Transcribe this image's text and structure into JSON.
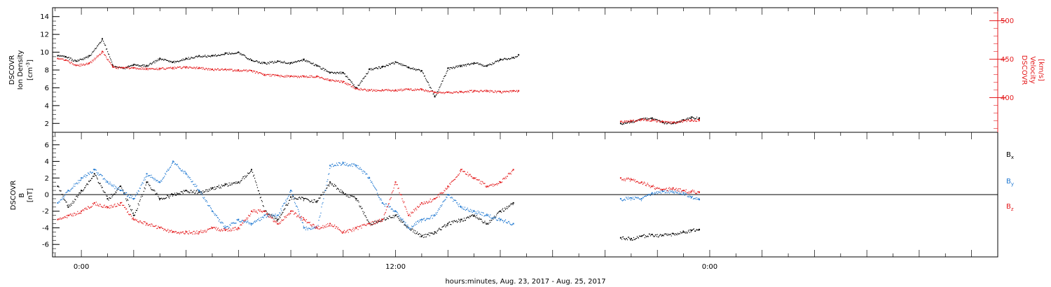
{
  "colors": {
    "black": "#000000",
    "red": "#e41a1c",
    "blue": "#1f78d1"
  },
  "shared_x": {
    "label": "hours:minutes, Aug. 23, 2017 - Aug. 25, 2017",
    "range_hours": [
      -1.1,
      35.0
    ],
    "tick_labels": [
      {
        "hour": 0,
        "label": "0:00"
      },
      {
        "hour": 12,
        "label": "12:00"
      },
      {
        "hour": 24,
        "label": "0:00"
      }
    ]
  },
  "chart_data": [
    {
      "type": "scatter",
      "name": "top-panel",
      "left_axis": {
        "label_lines": [
          "DSCOVR",
          "Ion Density"
        ],
        "unit": "[cm",
        "unit_sup": "-3",
        "unit_close": "]",
        "ylim": [
          1.0,
          15.0
        ],
        "ticks": [
          2,
          4,
          6,
          8,
          10,
          12,
          14
        ]
      },
      "right_axis": {
        "label_lines": [
          "DSCOVR",
          "Velocity"
        ],
        "unit": "[km/s]",
        "ylim": [
          355,
          517
        ],
        "ticks": [
          400,
          450,
          500
        ]
      },
      "series": [
        {
          "key": "density",
          "axis": "left",
          "color": "black",
          "x": [
            -0.9,
            -0.6,
            -0.2,
            0.3,
            0.8,
            1.2,
            1.6,
            2.0,
            2.5,
            3.0,
            3.5,
            4.0,
            4.5,
            5.0,
            5.5,
            6.0,
            6.5,
            7.0,
            7.5,
            8.0,
            8.5,
            9.0,
            9.5,
            10.0,
            10.5,
            11.0,
            11.5,
            12.0,
            12.5,
            13.0,
            13.5,
            14.0,
            14.5,
            15.0,
            15.5,
            16.0,
            16.5,
            16.7
          ],
          "y": [
            9.6,
            9.5,
            9.0,
            9.6,
            11.5,
            8.5,
            8.2,
            8.6,
            8.5,
            9.3,
            8.9,
            9.3,
            9.6,
            9.6,
            9.9,
            10.0,
            9.1,
            8.8,
            9.0,
            8.8,
            9.2,
            8.5,
            7.7,
            7.7,
            6.0,
            8.1,
            8.4,
            8.9,
            8.3,
            7.9,
            5.0,
            8.2,
            8.5,
            8.8,
            8.5,
            9.2,
            9.4,
            9.7
          ]
        },
        {
          "key": "velocity",
          "axis": "right",
          "color": "red",
          "x": [
            -0.9,
            -0.6,
            -0.2,
            0.3,
            0.8,
            1.2,
            1.6,
            2.0,
            2.5,
            3.0,
            3.5,
            4.0,
            4.5,
            5.0,
            5.5,
            6.0,
            6.5,
            7.0,
            7.5,
            8.0,
            8.5,
            9.0,
            9.5,
            10.0,
            10.5,
            11.0,
            11.5,
            12.0,
            12.5,
            13.0,
            13.5,
            14.0,
            14.5,
            15.0,
            15.5,
            16.0,
            16.5,
            16.7
          ],
          "y": [
            451,
            449,
            442,
            445,
            460,
            440,
            439,
            439,
            438,
            438,
            439,
            440,
            439,
            437,
            437,
            436,
            435,
            430,
            429,
            428,
            428,
            428,
            423,
            421,
            412,
            410,
            410,
            410,
            411,
            411,
            407,
            407,
            408,
            409,
            409,
            408,
            409,
            409
          ]
        },
        {
          "key": "density-late",
          "axis": "left",
          "color": "black",
          "x": [
            20.6,
            21.0,
            21.4,
            21.8,
            22.2,
            22.6,
            23.0,
            23.3,
            23.6
          ],
          "y": [
            2.0,
            2.2,
            2.5,
            2.6,
            2.1,
            2.0,
            2.4,
            2.7,
            2.6
          ]
        },
        {
          "key": "velocity-late",
          "axis": "right",
          "color": "red",
          "x": [
            20.6,
            21.0,
            21.4,
            21.8,
            22.2,
            22.6,
            23.0,
            23.3,
            23.6
          ],
          "y": [
            369,
            370,
            372,
            371,
            369,
            368,
            370,
            371,
            371
          ]
        }
      ]
    },
    {
      "type": "scatter",
      "name": "bottom-panel",
      "left_axis": {
        "label_lines": [
          "DSCOVR",
          "B"
        ],
        "unit": "[nT]",
        "ylim": [
          -7.5,
          7.5
        ],
        "ticks": [
          -6,
          -4,
          -2,
          0,
          2,
          4,
          6
        ],
        "zero_line": 0
      },
      "legend_position": "right",
      "series": [
        {
          "key": "bx",
          "name": "B",
          "sub": "x",
          "color": "black",
          "x": [
            -0.9,
            -0.5,
            0.0,
            0.5,
            1.0,
            1.5,
            2.0,
            2.5,
            3.0,
            3.5,
            4.0,
            4.5,
            5.0,
            5.5,
            6.0,
            6.5,
            7.0,
            7.5,
            8.0,
            8.5,
            9.0,
            9.5,
            10.0,
            10.5,
            11.0,
            11.5,
            12.0,
            12.5,
            13.0,
            13.5,
            14.0,
            14.5,
            15.0,
            15.5,
            16.0,
            16.5
          ],
          "y": [
            1.0,
            -1.5,
            0.5,
            2.5,
            -0.5,
            1.0,
            -2.5,
            1.5,
            -0.5,
            0.0,
            0.5,
            0.3,
            0.8,
            1.2,
            1.5,
            3.0,
            -2.0,
            -3.0,
            -0.3,
            -0.5,
            -0.8,
            1.5,
            0.2,
            -0.5,
            -3.5,
            -3.0,
            -2.5,
            -4.0,
            -5.0,
            -4.5,
            -3.5,
            -3.0,
            -2.5,
            -3.5,
            -2.0,
            -1.0
          ]
        },
        {
          "key": "by",
          "name": "B",
          "sub": "y",
          "color": "blue",
          "x": [
            -0.9,
            -0.5,
            0.0,
            0.5,
            1.0,
            1.5,
            2.0,
            2.5,
            3.0,
            3.5,
            4.0,
            4.5,
            5.0,
            5.5,
            6.0,
            6.5,
            7.0,
            7.5,
            8.0,
            8.5,
            9.0,
            9.5,
            10.0,
            10.5,
            11.0,
            11.5,
            12.0,
            12.5,
            13.0,
            13.5,
            14.0,
            14.5,
            15.0,
            15.5,
            16.0,
            16.5
          ],
          "y": [
            -1.0,
            0.5,
            2.0,
            3.0,
            1.5,
            0.5,
            -0.5,
            2.5,
            1.5,
            4.0,
            2.5,
            0.5,
            -2.0,
            -4.0,
            -3.0,
            -3.5,
            -2.5,
            -2.5,
            0.5,
            -4.0,
            -4.0,
            3.5,
            3.8,
            3.5,
            2.0,
            -1.0,
            -2.0,
            -4.0,
            -3.0,
            -2.5,
            0.0,
            -1.5,
            -2.0,
            -2.5,
            -3.0,
            -3.5
          ]
        },
        {
          "key": "bz",
          "name": "B",
          "sub": "z",
          "color": "red",
          "x": [
            -0.9,
            -0.5,
            0.0,
            0.5,
            1.0,
            1.5,
            2.0,
            2.5,
            3.0,
            3.5,
            4.0,
            4.5,
            5.0,
            5.5,
            6.0,
            6.5,
            7.0,
            7.5,
            8.0,
            8.5,
            9.0,
            9.5,
            10.0,
            10.5,
            11.0,
            11.5,
            12.0,
            12.5,
            13.0,
            13.5,
            14.0,
            14.5,
            15.0,
            15.5,
            16.0,
            16.5
          ],
          "y": [
            -3.0,
            -2.5,
            -2.0,
            -1.0,
            -1.5,
            -1.0,
            -3.0,
            -3.5,
            -4.0,
            -4.5,
            -4.5,
            -4.5,
            -4.0,
            -4.3,
            -4.0,
            -2.0,
            -2.0,
            -3.5,
            -2.0,
            -3.0,
            -4.0,
            -3.5,
            -4.5,
            -4.0,
            -3.5,
            -3.0,
            1.5,
            -2.5,
            -1.0,
            -0.5,
            1.0,
            3.0,
            2.0,
            1.0,
            1.5,
            3.0
          ]
        },
        {
          "key": "bx-late",
          "color": "black",
          "x": [
            20.6,
            21.0,
            21.4,
            21.8,
            22.2,
            22.6,
            23.0,
            23.3,
            23.6
          ],
          "y": [
            -5.2,
            -5.3,
            -5.0,
            -4.8,
            -4.9,
            -4.7,
            -4.5,
            -4.3,
            -4.2
          ]
        },
        {
          "key": "by-late",
          "color": "blue",
          "x": [
            20.6,
            21.0,
            21.4,
            21.8,
            22.2,
            22.6,
            23.0,
            23.3,
            23.6
          ],
          "y": [
            -0.5,
            -0.4,
            -0.5,
            0.2,
            0.4,
            0.3,
            0.2,
            -0.3,
            -0.6
          ]
        },
        {
          "key": "bz-late",
          "color": "red",
          "x": [
            20.6,
            21.0,
            21.4,
            21.8,
            22.2,
            22.6,
            23.0,
            23.3,
            23.6
          ],
          "y": [
            2.0,
            1.8,
            1.5,
            1.0,
            0.6,
            0.8,
            0.5,
            0.4,
            0.3
          ]
        }
      ]
    }
  ]
}
